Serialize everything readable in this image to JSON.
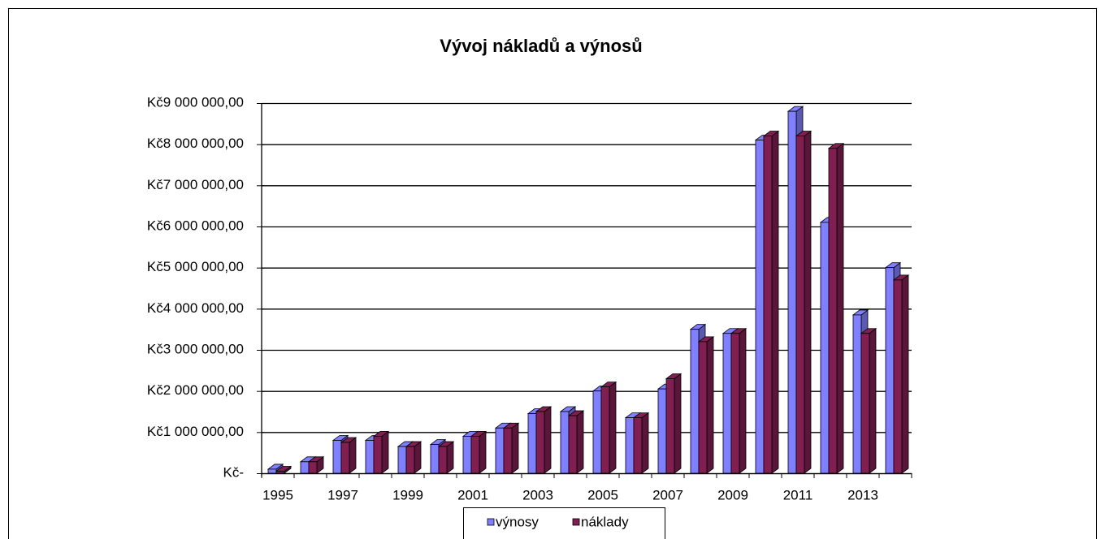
{
  "chart_data": {
    "type": "bar3d",
    "title": "Vývoj nákladů a výnosů",
    "categories": [
      "1995",
      null,
      "1997",
      null,
      "1999",
      null,
      "2001",
      null,
      "2003",
      null,
      "2005",
      null,
      "2007",
      null,
      "2009",
      null,
      "2011",
      null,
      "2013",
      null
    ],
    "series": [
      {
        "name": "výnosy",
        "color": "#8080ff",
        "values": [
          100000,
          280000,
          800000,
          800000,
          650000,
          700000,
          900000,
          1100000,
          1450000,
          1500000,
          2000000,
          1350000,
          2050000,
          3500000,
          3400000,
          8100000,
          8800000,
          6100000,
          3850000,
          5000000
        ]
      },
      {
        "name": "náklady",
        "color": "#7f1f52",
        "values": [
          50000,
          280000,
          750000,
          900000,
          650000,
          650000,
          900000,
          1100000,
          1500000,
          1400000,
          2100000,
          1350000,
          2300000,
          3200000,
          3400000,
          8200000,
          8200000,
          7900000,
          3400000,
          4700000
        ]
      }
    ],
    "ylim": [
      0,
      9000000
    ],
    "yticks": [
      {
        "value": 0,
        "label": "Kč-"
      },
      {
        "value": 1000000,
        "label": "Kč1 000 000,00"
      },
      {
        "value": 2000000,
        "label": "Kč2 000 000,00"
      },
      {
        "value": 3000000,
        "label": "Kč3 000 000,00"
      },
      {
        "value": 4000000,
        "label": "Kč4 000 000,00"
      },
      {
        "value": 5000000,
        "label": "Kč5 000 000,00"
      },
      {
        "value": 6000000,
        "label": "Kč6 000 000,00"
      },
      {
        "value": 7000000,
        "label": "Kč7 000 000,00"
      },
      {
        "value": 8000000,
        "label": "Kč8 000 000,00"
      },
      {
        "value": 9000000,
        "label": "Kč9 000 000,00"
      }
    ],
    "grid": true,
    "legend": "bottom"
  }
}
